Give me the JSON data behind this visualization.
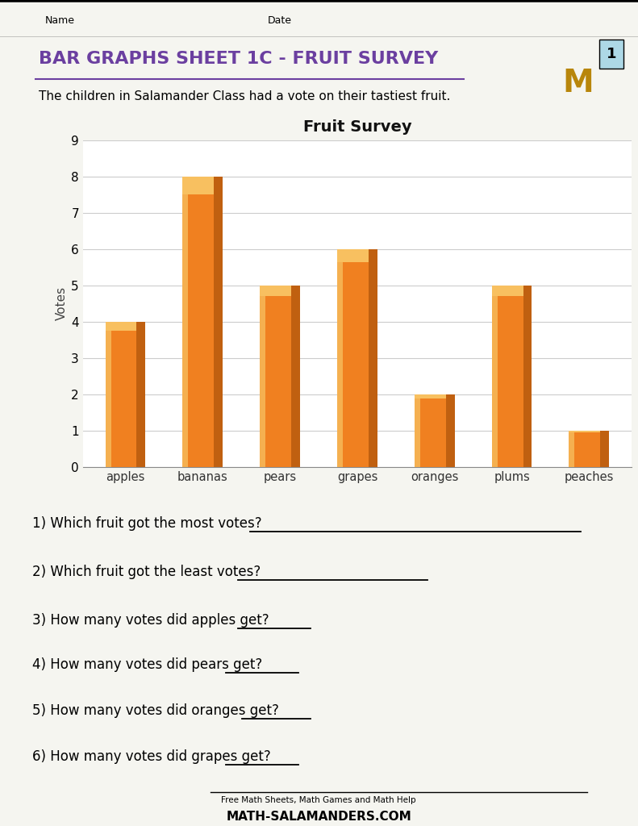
{
  "title": "BAR GRAPHS SHEET 1C - FRUIT SURVEY",
  "subtitle": "The children in Salamander Class had a vote on their tastiest fruit.",
  "chart_title": "Fruit Survey",
  "categories": [
    "apples",
    "bananas",
    "pears",
    "grapes",
    "oranges",
    "plums",
    "peaches"
  ],
  "values": [
    4,
    8,
    5,
    6,
    2,
    5,
    1
  ],
  "bar_color_main": "#F08020",
  "bar_color_dark": "#C06010",
  "bar_color_light": "#F5B050",
  "bar_color_top": "#F8C060",
  "ylabel": "Votes",
  "ylim": [
    0,
    9
  ],
  "yticks": [
    0,
    1,
    2,
    3,
    4,
    5,
    6,
    7,
    8,
    9
  ],
  "name_label": "Name",
  "date_label": "Date",
  "questions": [
    "1) Which fruit got the most votes?",
    "2) Which fruit got the least votes?",
    "3) How many votes did apples get?",
    "4) How many votes did pears get?",
    "5) How many votes did oranges get?",
    "6) How many votes did grapes get?"
  ],
  "title_color": "#6B3FA0",
  "bg_color": "#F5F5F0",
  "chart_bg": "#FFFFFF",
  "footer_text": "Free Math Sheets, Math Games and Math Help",
  "footer_url": "MATH-SALAMANDERS.COM"
}
